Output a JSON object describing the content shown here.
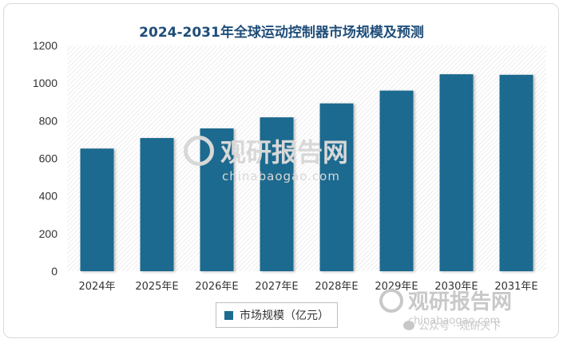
{
  "chart_data": {
    "type": "bar",
    "title": "2024-2031年全球运动控制器市场规模及预测",
    "categories": [
      "2024年",
      "2025年E",
      "2026年E",
      "2027年E",
      "2028年E",
      "2029年E",
      "2030年E",
      "2031年E"
    ],
    "series": [
      {
        "name": "市场规模（亿元）",
        "values": [
          652,
          708,
          759,
          818,
          892,
          960,
          1047,
          1044
        ]
      }
    ],
    "ylim": [
      0,
      1200
    ],
    "yticks": [
      0,
      200,
      400,
      600,
      800,
      1000,
      1200
    ],
    "xlabel": "",
    "ylabel": "",
    "grid": false,
    "legend_position": "bottom",
    "colors": {
      "bar": "#1d6b8f",
      "title": "#1f4e79"
    }
  },
  "watermark": {
    "center_text": "观研报告网",
    "center_url": "chinabaogao.com",
    "corner_text": "观研报告网",
    "corner_url": "chinabaogao.com",
    "footer": "公众号 · 观研天下"
  }
}
